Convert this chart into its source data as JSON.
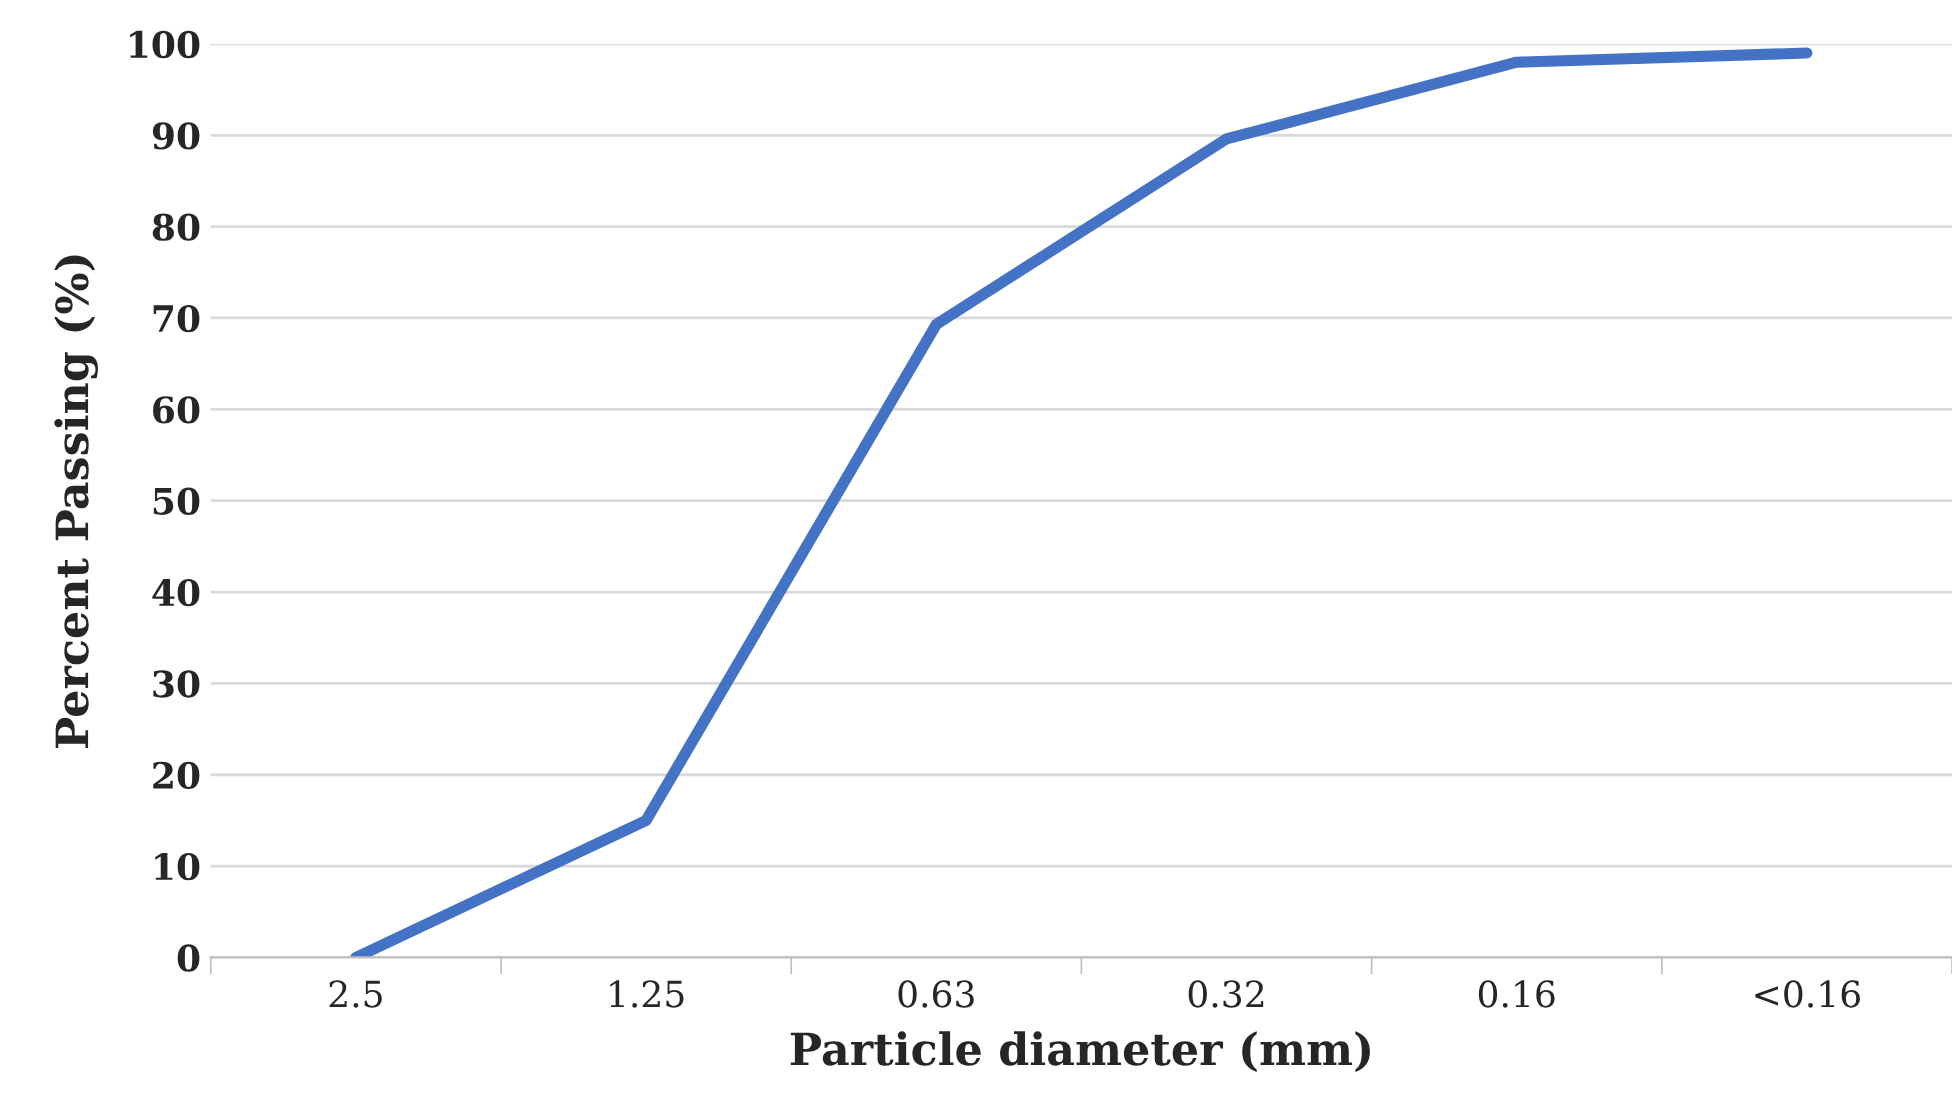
{
  "chart_data": {
    "type": "line",
    "xlabel": "Particle diameter (mm)",
    "ylabel": "Percent Passing (%)",
    "categories": [
      "2.5",
      "1.25",
      "0.63",
      "0.32",
      "0.16",
      "<0.16"
    ],
    "series": [
      {
        "color": "#4472c4",
        "values": [
          0,
          15,
          69.3,
          89.6,
          98,
          99
        ]
      }
    ],
    "ylim": [
      0,
      100
    ],
    "yticks": [
      0,
      10,
      20,
      30,
      40,
      50,
      60,
      70,
      80,
      90,
      100
    ],
    "grid": "y",
    "marker": "none",
    "line_style": "solid",
    "legend": false
  }
}
